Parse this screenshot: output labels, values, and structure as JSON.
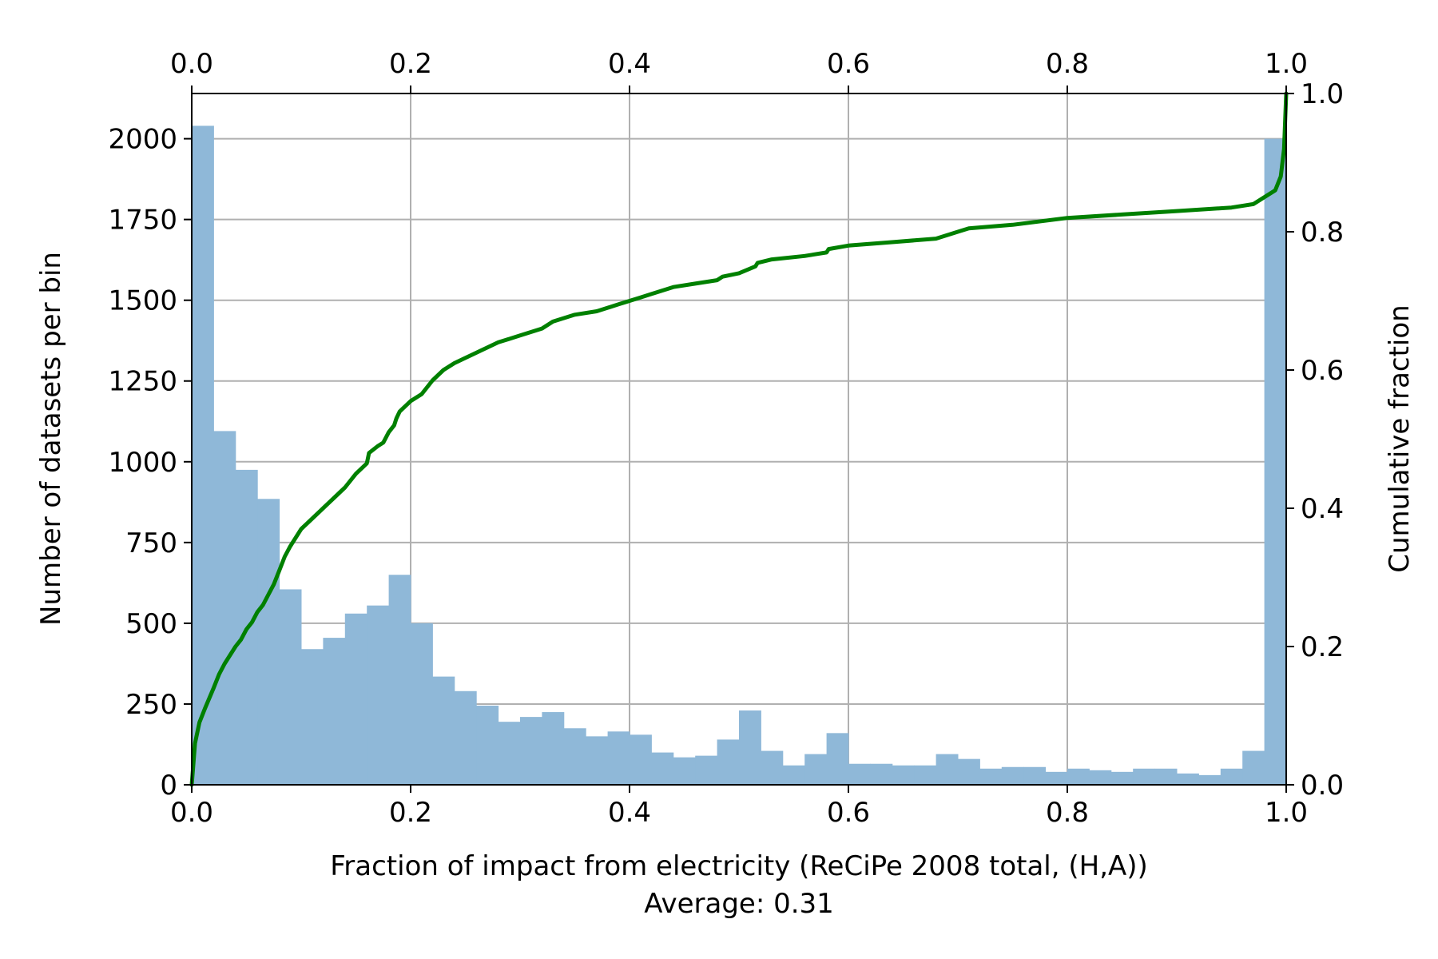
{
  "chart_data": {
    "type": "bar",
    "xlabel": "Fraction of impact from electricity (ReCiPe 2008 total, (H,A))",
    "subtitle": "Average: 0.31",
    "ylabel": "Number of datasets per bin",
    "y2label": "Cumulative fraction",
    "xlim": [
      0,
      1
    ],
    "ylim": [
      0,
      2140
    ],
    "y2lim": [
      0,
      1
    ],
    "grid": true,
    "xticks": [
      "0.0",
      "0.2",
      "0.4",
      "0.6",
      "0.8",
      "1.0"
    ],
    "yticks": [
      "0",
      "250",
      "500",
      "750",
      "1000",
      "1250",
      "1500",
      "1750",
      "2000"
    ],
    "y2ticks": [
      "0.0",
      "0.2",
      "0.4",
      "0.6",
      "0.8",
      "1.0"
    ],
    "bin_width": 0.02,
    "series": [
      {
        "kind": "histogram",
        "color": "#8fb8d8",
        "x": [
          0.0,
          0.02,
          0.04,
          0.06,
          0.08,
          0.1,
          0.12,
          0.14,
          0.16,
          0.18,
          0.2,
          0.22,
          0.24,
          0.26,
          0.28,
          0.3,
          0.32,
          0.34,
          0.36,
          0.38,
          0.4,
          0.42,
          0.44,
          0.46,
          0.48,
          0.5,
          0.52,
          0.54,
          0.56,
          0.58,
          0.6,
          0.62,
          0.64,
          0.66,
          0.68,
          0.7,
          0.72,
          0.74,
          0.76,
          0.78,
          0.8,
          0.82,
          0.84,
          0.86,
          0.88,
          0.9,
          0.92,
          0.94,
          0.96,
          0.98
        ],
        "values": [
          2040,
          1095,
          975,
          885,
          605,
          420,
          455,
          530,
          555,
          650,
          500,
          335,
          290,
          245,
          195,
          210,
          225,
          175,
          150,
          165,
          155,
          100,
          85,
          90,
          140,
          230,
          105,
          60,
          95,
          160,
          65,
          65,
          60,
          60,
          95,
          80,
          50,
          55,
          55,
          40,
          50,
          45,
          40,
          50,
          50,
          35,
          30,
          50,
          105,
          2000
        ]
      },
      {
        "kind": "cumulative-line",
        "color": "#008000",
        "x": [
          0.0,
          0.003,
          0.007,
          0.012,
          0.02,
          0.025,
          0.03,
          0.04,
          0.045,
          0.05,
          0.055,
          0.06,
          0.065,
          0.07,
          0.075,
          0.08,
          0.085,
          0.09,
          0.1,
          0.11,
          0.12,
          0.13,
          0.14,
          0.15,
          0.16,
          0.162,
          0.17,
          0.175,
          0.18,
          0.185,
          0.187,
          0.19,
          0.2,
          0.21,
          0.22,
          0.23,
          0.24,
          0.26,
          0.28,
          0.3,
          0.32,
          0.33,
          0.35,
          0.37,
          0.39,
          0.41,
          0.42,
          0.44,
          0.46,
          0.48,
          0.485,
          0.5,
          0.515,
          0.517,
          0.53,
          0.56,
          0.58,
          0.582,
          0.6,
          0.64,
          0.68,
          0.7,
          0.71,
          0.75,
          0.8,
          0.85,
          0.9,
          0.95,
          0.97,
          0.98,
          0.99,
          0.995,
          0.998,
          1.0
        ],
        "values": [
          0.0,
          0.06,
          0.09,
          0.11,
          0.14,
          0.16,
          0.175,
          0.2,
          0.21,
          0.225,
          0.235,
          0.25,
          0.26,
          0.275,
          0.29,
          0.31,
          0.33,
          0.345,
          0.37,
          0.385,
          0.4,
          0.415,
          0.43,
          0.45,
          0.465,
          0.48,
          0.49,
          0.495,
          0.51,
          0.52,
          0.53,
          0.54,
          0.555,
          0.565,
          0.585,
          0.6,
          0.61,
          0.625,
          0.64,
          0.65,
          0.66,
          0.67,
          0.68,
          0.685,
          0.695,
          0.705,
          0.71,
          0.72,
          0.725,
          0.73,
          0.735,
          0.74,
          0.75,
          0.755,
          0.76,
          0.765,
          0.77,
          0.775,
          0.78,
          0.785,
          0.79,
          0.8,
          0.805,
          0.81,
          0.82,
          0.825,
          0.83,
          0.835,
          0.84,
          0.85,
          0.86,
          0.88,
          0.92,
          1.0
        ]
      }
    ]
  }
}
